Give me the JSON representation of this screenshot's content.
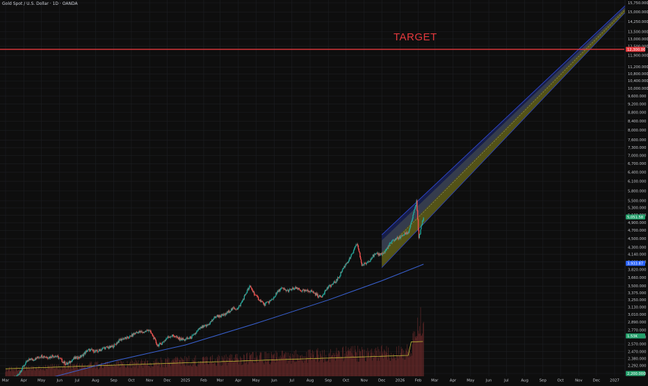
{
  "header": {
    "title": "Gold Spot / U.S. Dollar · 1D · OANDA"
  },
  "annotation": {
    "target_label": "TARGET"
  },
  "colors": {
    "background": "#0e0e0e",
    "grid": "#1d1f23",
    "axis_text": "#c5c7cc",
    "candle_up": "#26a69a",
    "candle_down": "#ef5350",
    "target_line": "#e6393d",
    "ma_line": "#3a63d6",
    "channel_fill": "#6b6a1a",
    "channel_upper": "#2d44c4",
    "volume": "#6e2b2b",
    "volume_ma": "#c8c23a",
    "price_badge": "#24a06b",
    "ma_badge": "#2962ff"
  },
  "chart_data": {
    "type": "candlestick",
    "title": "Gold Spot / U.S. Dollar · 1D · OANDA",
    "scale": "log",
    "ylim": [
      2200,
      15750
    ],
    "y_ticks": [
      "15,750.000",
      "15,000.000",
      "14,250.000",
      "13,500.000",
      "13,000.000",
      "12,500.000",
      "11,900.000",
      "11,200.000",
      "10,800.000",
      "10,400.000",
      "10,000.000",
      "9,600.000",
      "9,200.000",
      "8,800.000",
      "8,400.000",
      "8,000.000",
      "7,600.000",
      "7,300.000",
      "7,000.000",
      "6,700.000",
      "6,400.000",
      "6,100.000",
      "5,800.000",
      "5,500.000",
      "5,300.000",
      "5,100.000",
      "4,900.000",
      "4,700.000",
      "4,500.000",
      "4,300.000",
      "4,140.000",
      "3,980.000",
      "3,820.000",
      "3,660.000",
      "3,500.000",
      "3,375.000",
      "3,250.000",
      "3,130.000",
      "3,010.000",
      "2,890.000",
      "2,770.000",
      "2,670.000",
      "2,570.000",
      "2,470.000",
      "2,380.000",
      "2,292.000",
      "2,200.000"
    ],
    "x_ticks": [
      "Mar",
      "Apr",
      "May",
      "Jun",
      "Jul",
      "Aug",
      "Sep",
      "Oct",
      "Nov",
      "Dec",
      "2025",
      "Feb",
      "Mar",
      "Apr",
      "May",
      "Jun",
      "Jul",
      "Aug",
      "Sep",
      "Oct",
      "Nov",
      "Dec",
      "2026",
      "Feb",
      "Mar",
      "Apr",
      "May",
      "Jun",
      "Jul",
      "Aug",
      "Sep",
      "Oct",
      "Nov",
      "Dec",
      "2027"
    ],
    "price_key_points": [
      [
        "2024-03-01",
        2050
      ],
      [
        "2024-03-20",
        2180
      ],
      [
        "2024-04-12",
        2380
      ],
      [
        "2024-05-20",
        2420
      ],
      [
        "2024-06-15",
        2320
      ],
      [
        "2024-07-17",
        2470
      ],
      [
        "2024-08-20",
        2510
      ],
      [
        "2024-09-26",
        2680
      ],
      [
        "2024-10-30",
        2780
      ],
      [
        "2024-11-14",
        2560
      ],
      [
        "2024-12-12",
        2700
      ],
      [
        "2024-12-30",
        2610
      ],
      [
        "2025-01-25",
        2770
      ],
      [
        "2025-02-20",
        2950
      ],
      [
        "2025-03-31",
        3120
      ],
      [
        "2025-04-21",
        3480
      ],
      [
        "2025-05-15",
        3150
      ],
      [
        "2025-06-13",
        3440
      ],
      [
        "2025-07-22",
        3430
      ],
      [
        "2025-08-20",
        3320
      ],
      [
        "2025-09-20",
        3690
      ],
      [
        "2025-10-20",
        4370
      ],
      [
        "2025-10-28",
        3900
      ],
      [
        "2025-11-15",
        4080
      ],
      [
        "2025-12-05",
        4200
      ],
      [
        "2025-12-26",
        4530
      ],
      [
        "2026-01-15",
        4620
      ],
      [
        "2026-01-29",
        5500
      ],
      [
        "2026-02-02",
        4500
      ],
      [
        "2026-02-10",
        5030
      ]
    ],
    "moving_average_points": [
      [
        "2024-03-01",
        2020
      ],
      [
        "2024-09-01",
        2350
      ],
      [
        "2025-01-01",
        2560
      ],
      [
        "2025-05-01",
        2870
      ],
      [
        "2025-09-01",
        3250
      ],
      [
        "2025-12-01",
        3600
      ],
      [
        "2026-02-10",
        3930
      ]
    ],
    "target_price": 12300,
    "current_price_label": "5,051.58",
    "ma_price_label": "3,933.87",
    "volume_ma_label": "1.53K",
    "lower_price_label": "2,200.000",
    "channel": {
      "start": "2025-12-01",
      "end": "2027-02-10",
      "lower_start": 3860,
      "upper_start": 4460,
      "center_end": 16250,
      "width_end": 320
    }
  }
}
